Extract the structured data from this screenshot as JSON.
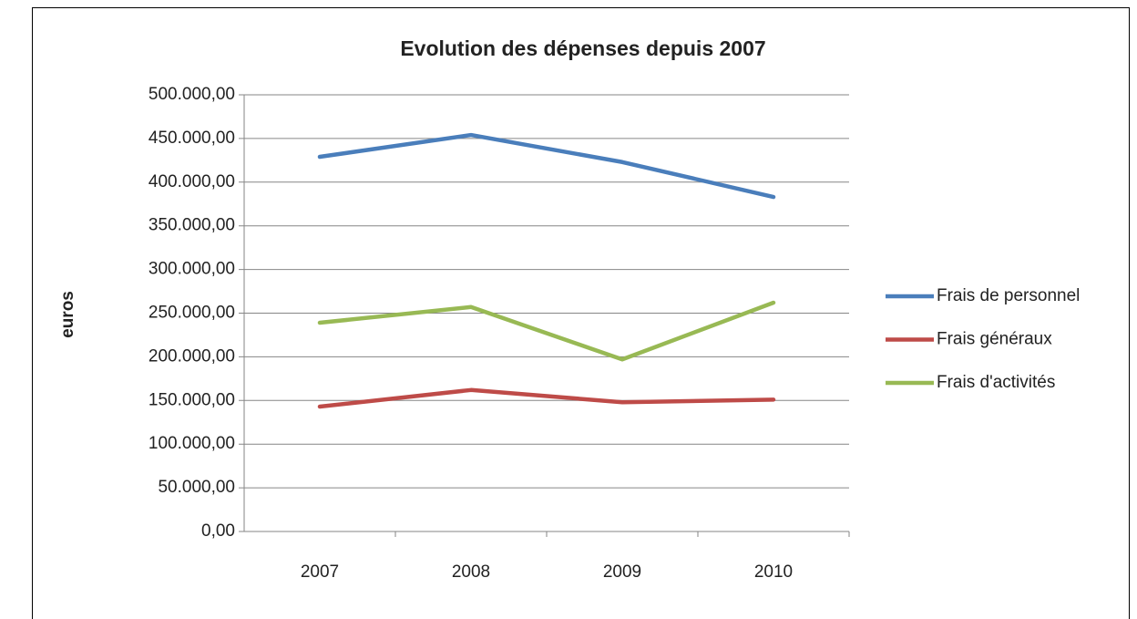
{
  "chart_data": {
    "type": "line",
    "title": "Evolution des dépenses depuis 2007",
    "y_label": "euros",
    "categories": [
      "2007",
      "2008",
      "2009",
      "2010"
    ],
    "series": [
      {
        "name": "Frais de personnel",
        "color": "#4a7ebb",
        "values": [
          429000,
          454000,
          423000,
          383000
        ]
      },
      {
        "name": "Frais généraux",
        "color": "#be4b48",
        "values": [
          143000,
          162000,
          148000,
          151000
        ]
      },
      {
        "name": "Frais d'activités",
        "color": "#98b954",
        "values": [
          239000,
          257000,
          197000,
          262000
        ]
      }
    ],
    "ylim": [
      0,
      500000
    ],
    "yticks": [
      {
        "value": 0,
        "label": "0,00"
      },
      {
        "value": 50000,
        "label": "50.000,00"
      },
      {
        "value": 100000,
        "label": "100.000,00"
      },
      {
        "value": 150000,
        "label": "150.000,00"
      },
      {
        "value": 200000,
        "label": "200.000,00"
      },
      {
        "value": 250000,
        "label": "250.000,00"
      },
      {
        "value": 300000,
        "label": "300.000,00"
      },
      {
        "value": 350000,
        "label": "350.000,00"
      },
      {
        "value": 400000,
        "label": "400.000,00"
      },
      {
        "value": 450000,
        "label": "450.000,00"
      },
      {
        "value": 500000,
        "label": "500.000,00"
      }
    ],
    "grid": true,
    "legend": "right"
  }
}
